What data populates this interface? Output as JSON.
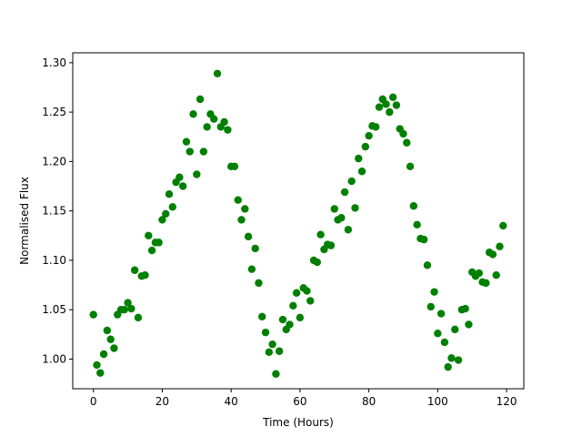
{
  "chart_data": {
    "type": "scatter",
    "title": "",
    "xlabel": "Time (Hours)",
    "ylabel": "Normalised Flux",
    "xlim": [
      -6,
      125
    ],
    "ylim": [
      0.97,
      1.31
    ],
    "xticks": [
      0,
      20,
      40,
      60,
      80,
      100,
      120
    ],
    "yticks": [
      1.0,
      1.05,
      1.1,
      1.15,
      1.2,
      1.25,
      1.3
    ],
    "xtick_labels": [
      "0",
      "20",
      "40",
      "60",
      "80",
      "100",
      "120"
    ],
    "ytick_labels": [
      "1.00",
      "1.05",
      "1.10",
      "1.15",
      "1.20",
      "1.25",
      "1.30"
    ],
    "grid": false,
    "marker_color": "#008000",
    "series": [
      {
        "x": [
          0,
          1,
          2,
          3,
          4,
          5,
          6,
          7,
          8,
          9,
          10,
          11,
          12,
          13,
          14,
          15,
          16,
          17,
          18,
          19,
          20,
          21,
          22,
          23,
          24,
          25,
          26,
          27,
          28,
          29,
          30,
          31,
          32,
          33,
          34,
          35,
          36,
          37,
          38,
          39,
          40,
          41,
          42,
          43,
          44,
          45,
          46,
          47,
          48,
          49,
          50,
          51,
          52,
          53,
          54,
          55,
          56,
          57,
          58,
          59,
          60,
          61,
          62,
          63,
          64,
          65,
          66,
          67,
          68,
          69,
          70,
          71,
          72,
          73,
          74,
          75,
          76,
          77,
          78,
          79,
          80,
          81,
          82,
          83,
          84,
          85,
          86,
          87,
          88,
          89,
          90,
          91,
          92,
          93,
          94,
          95,
          96,
          97,
          98,
          99,
          100,
          101,
          102,
          103,
          104,
          105,
          106,
          107,
          108,
          109,
          110,
          111,
          112,
          113,
          114,
          115,
          116,
          117,
          118,
          119
        ],
        "y": [
          1.045,
          0.994,
          0.986,
          1.005,
          1.029,
          1.02,
          1.011,
          1.045,
          1.05,
          1.05,
          1.057,
          1.051,
          1.09,
          1.042,
          1.084,
          1.085,
          1.125,
          1.11,
          1.118,
          1.118,
          1.141,
          1.147,
          1.167,
          1.154,
          1.179,
          1.184,
          1.175,
          1.22,
          1.21,
          1.248,
          1.187,
          1.263,
          1.21,
          1.235,
          1.248,
          1.243,
          1.289,
          1.235,
          1.24,
          1.232,
          1.195,
          1.195,
          1.161,
          1.141,
          1.152,
          1.124,
          1.091,
          1.112,
          1.077,
          1.043,
          1.027,
          1.007,
          1.015,
          0.985,
          1.008,
          1.04,
          1.03,
          1.035,
          1.054,
          1.067,
          1.042,
          1.072,
          1.069,
          1.059,
          1.1,
          1.098,
          1.126,
          1.111,
          1.116,
          1.115,
          1.152,
          1.141,
          1.143,
          1.169,
          1.131,
          1.18,
          1.153,
          1.203,
          1.19,
          1.215,
          1.226,
          1.236,
          1.235,
          1.255,
          1.263,
          1.258,
          1.25,
          1.265,
          1.257,
          1.233,
          1.228,
          1.219,
          1.195,
          1.155,
          1.136,
          1.122,
          1.121,
          1.095,
          1.053,
          1.068,
          1.026,
          1.046,
          1.017,
          0.992,
          1.001,
          1.03,
          0.999,
          1.05,
          1.051,
          1.035,
          1.088,
          1.084,
          1.087,
          1.078,
          1.077,
          1.108,
          1.106,
          1.085,
          1.114,
          1.135
        ]
      }
    ]
  }
}
